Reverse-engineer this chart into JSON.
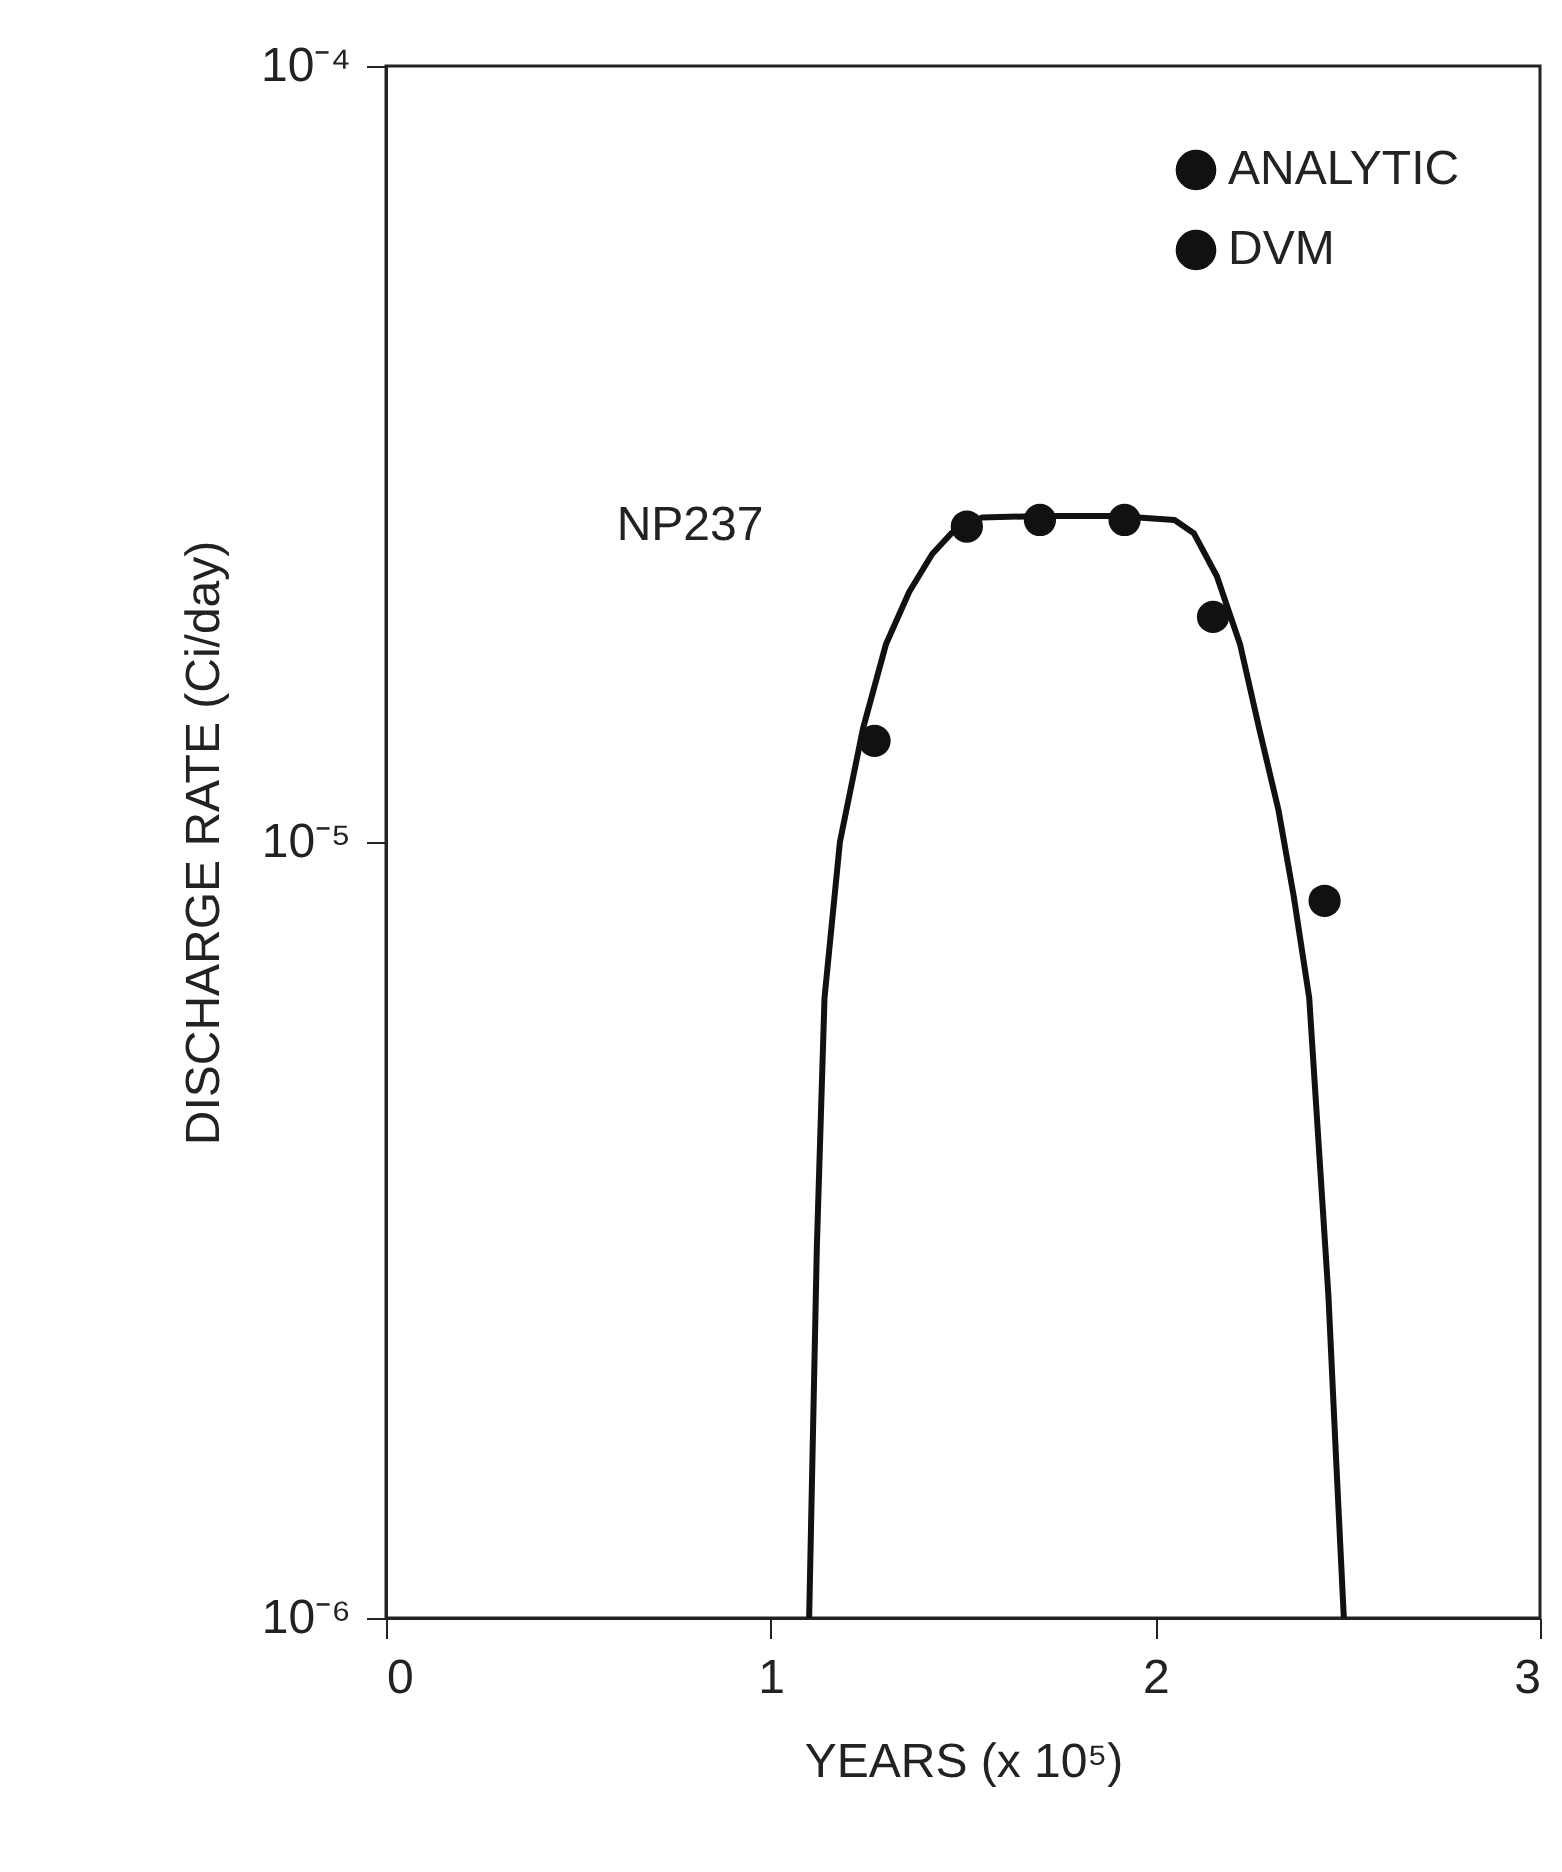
{
  "chart_data": {
    "type": "line",
    "xlabel": "YEARS (x 10⁵)",
    "ylabel": "DISCHARGE RATE (Ci/day)",
    "xlim": [
      0,
      3
    ],
    "xticks": [
      0,
      1,
      2,
      3
    ],
    "ylim": [
      1e-06,
      0.0001
    ],
    "yticks": [
      {
        "value": 1e-06,
        "label": "10⁻⁶"
      },
      {
        "value": 1e-05,
        "label": "10⁻⁵"
      },
      {
        "value": 0.0001,
        "label": "10⁻⁴"
      }
    ],
    "log": "y",
    "grid": false,
    "legend": "top right",
    "annotations": [
      "NP237"
    ],
    "series": [
      {
        "name": "ANALYTIC",
        "color": "#111111",
        "x": [
          1.1,
          1.12,
          1.14,
          1.18,
          1.24,
          1.3,
          1.36,
          1.42,
          1.47,
          1.55,
          1.7,
          1.9,
          2.05,
          2.1,
          2.16,
          2.22,
          2.27,
          2.32,
          2.36,
          2.4,
          2.45,
          2.47,
          2.49
        ],
        "values": [
          1e-06,
          3e-06,
          6.3e-06,
          1e-05,
          1.4e-05,
          1.8e-05,
          2.1e-05,
          2.35e-05,
          2.5e-05,
          2.62e-05,
          2.63e-05,
          2.63e-05,
          2.6e-05,
          2.5e-05,
          2.2e-05,
          1.8e-05,
          1.4e-05,
          1.1e-05,
          8.5e-06,
          6.3e-06,
          2.6e-06,
          1.6e-06,
          1e-06
        ]
      },
      {
        "name": "DVM",
        "type": "scatter",
        "marker": "circle",
        "color": "#111111",
        "x": [
          1.27,
          1.51,
          1.7,
          1.92,
          2.15,
          2.44
        ],
        "values": [
          1.35e-05,
          2.55e-05,
          2.6e-05,
          2.6e-05,
          1.95e-05,
          8.4e-06
        ]
      }
    ]
  }
}
